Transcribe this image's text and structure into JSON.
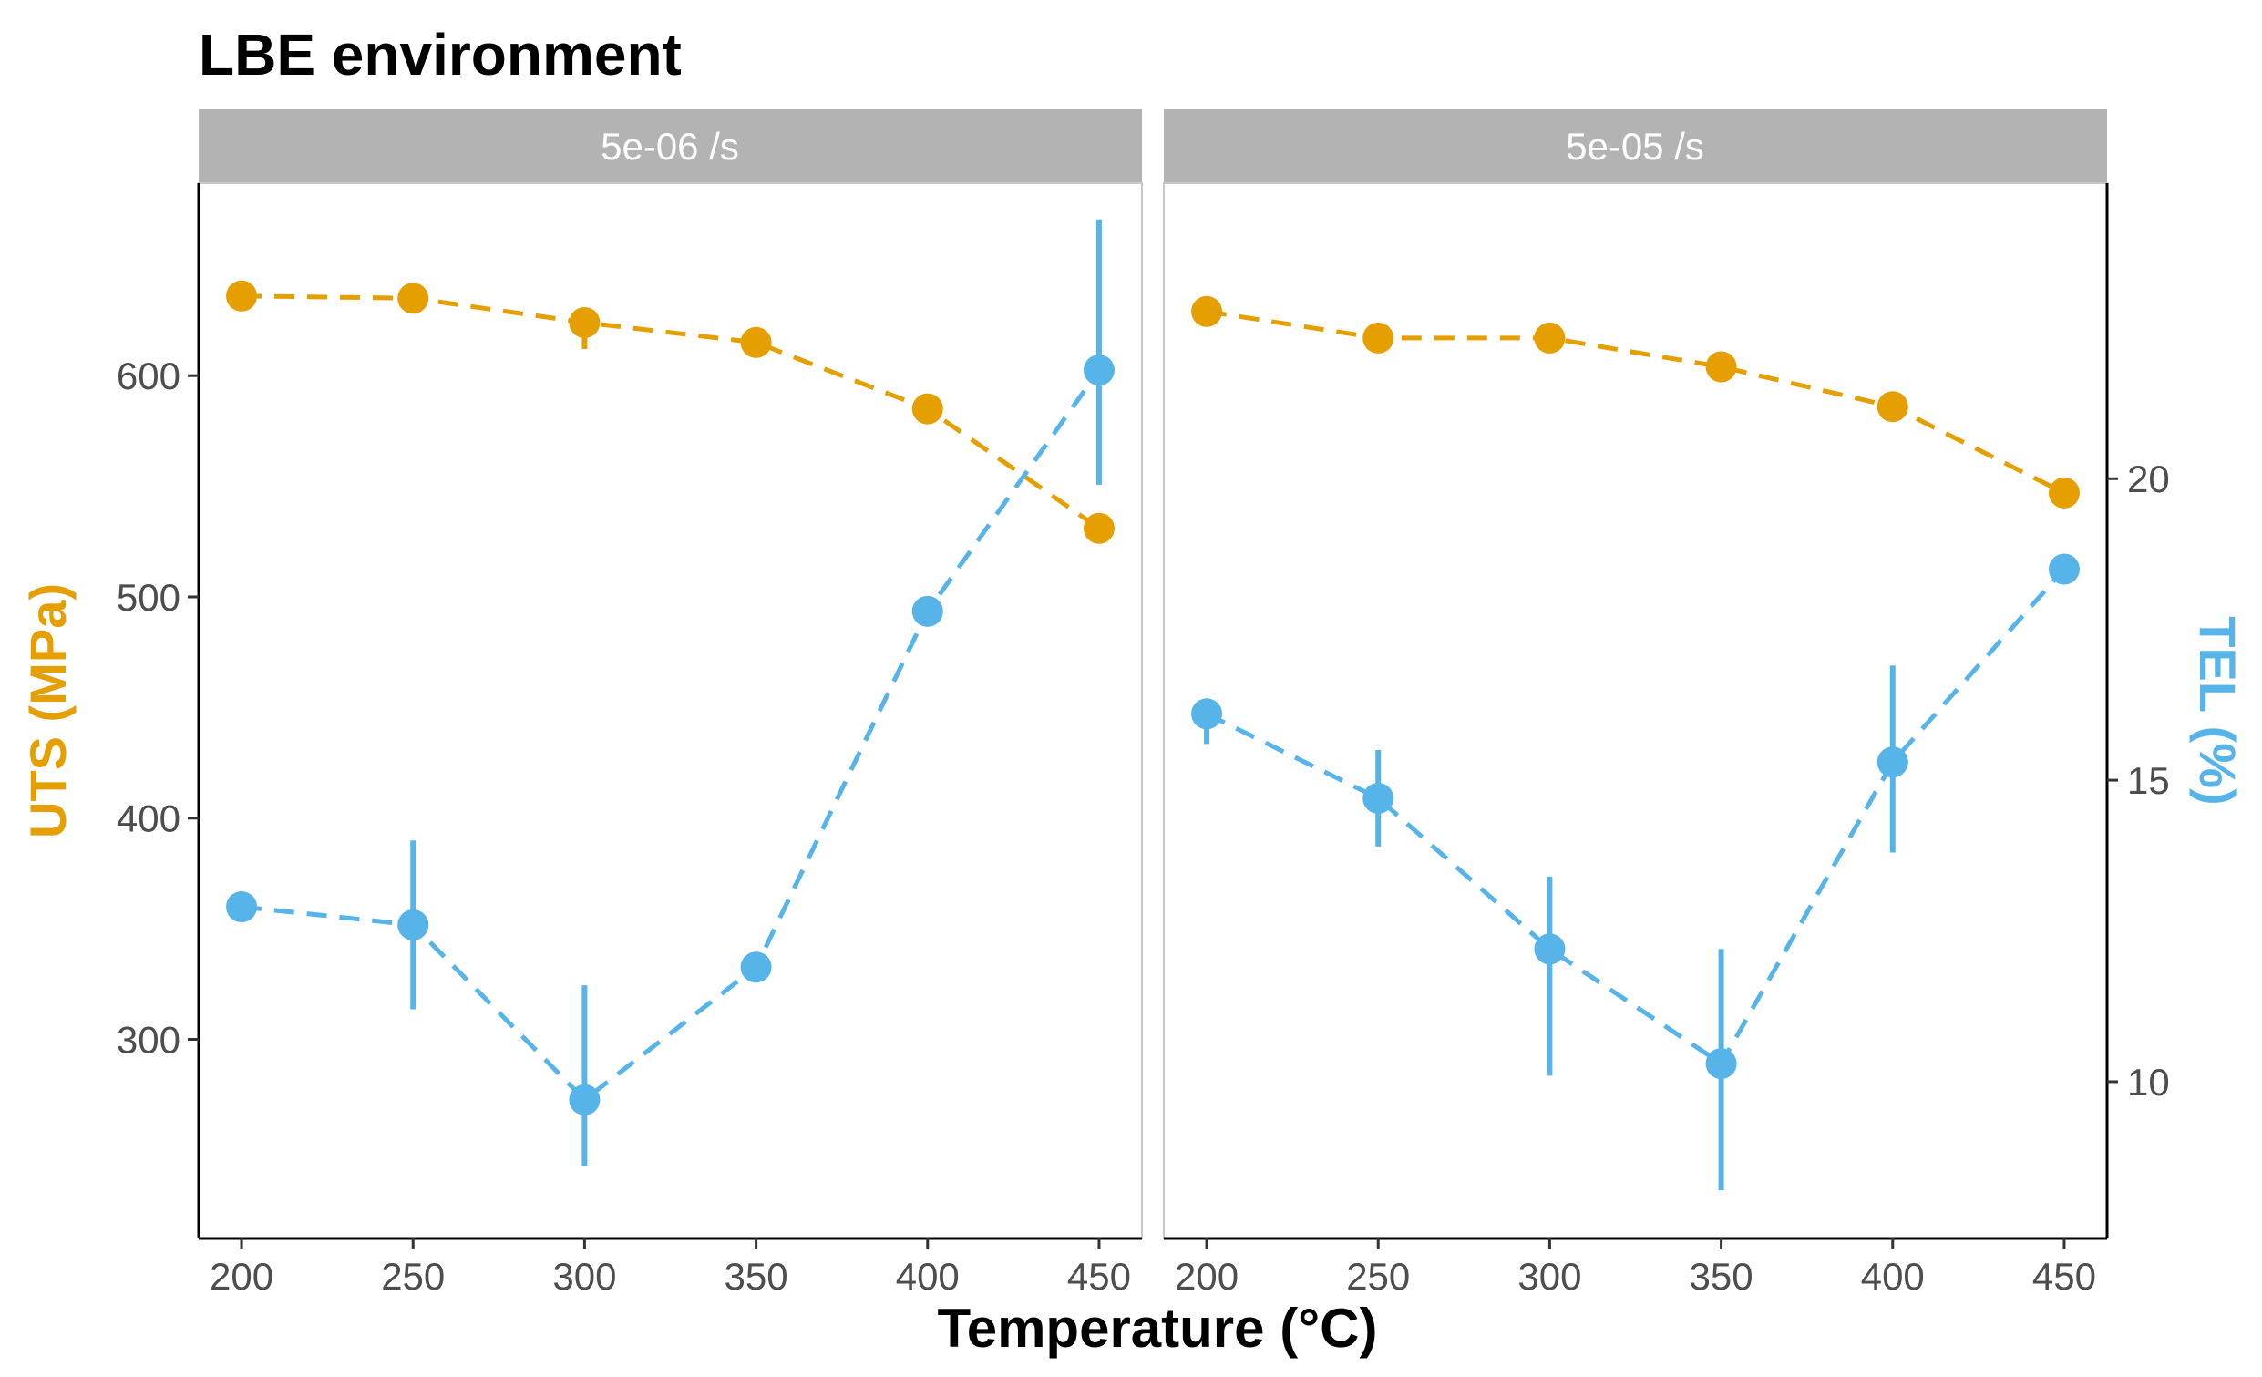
{
  "title": "LBE environment",
  "colors": {
    "uts": "#E69F00",
    "tel": "#56B4E9",
    "strip": "#b3b3b3",
    "axis": "#000000",
    "tick_text": "#4d4d4d"
  },
  "chart_data": {
    "type": "line",
    "title": "LBE environment",
    "xlabel": "Temperature (°C)",
    "ylabel_left": "UTS (MPa)",
    "ylabel_right": "TEL (%)",
    "x_ticks": [
      200,
      250,
      300,
      350,
      400,
      450
    ],
    "y_left_ticks": [
      300,
      400,
      500,
      600
    ],
    "y_right_ticks": [
      10,
      15,
      20
    ],
    "xlim": [
      187.5,
      462.5
    ],
    "ylim_left": [
      210,
      687
    ],
    "ylim_right": [
      7.4,
      24.9
    ],
    "grid": false,
    "line_style": "dashed with point markers and error bars",
    "panels": [
      {
        "strip_label": "5e-06 /s",
        "series": [
          {
            "name": "UTS (MPa)",
            "axis": "left",
            "x": [
              200,
              250,
              300,
              350,
              400,
              450
            ],
            "y": [
              636,
              635,
              624,
              615,
              585,
              531
            ],
            "err_lo": [
              0,
              0,
              612,
              0,
              0,
              0
            ],
            "err_hi": [
              0,
              0,
              624,
              0,
              0,
              0
            ]
          },
          {
            "name": "TEL (%)",
            "axis": "right",
            "x": [
              200,
              250,
              300,
              350,
              400,
              450
            ],
            "y": [
              12.9,
              12.6,
              9.7,
              11.9,
              17.8,
              21.8
            ],
            "err_lo": [
              12.9,
              11.2,
              8.6,
              11.9,
              17.8,
              19.9
            ],
            "err_hi": [
              12.9,
              14.0,
              11.6,
              11.9,
              17.8,
              24.3
            ]
          }
        ]
      },
      {
        "strip_label": "5e-05 /s",
        "series": [
          {
            "name": "UTS (MPa)",
            "axis": "left",
            "x": [
              200,
              250,
              300,
              350,
              400,
              450
            ],
            "y": [
              629,
              617,
              617,
              604,
              586,
              547
            ],
            "err_lo": [
              0,
              0,
              0,
              0,
              0,
              0
            ],
            "err_hi": [
              0,
              0,
              0,
              0,
              0,
              0
            ]
          },
          {
            "name": "TEL (%)",
            "axis": "right",
            "x": [
              200,
              250,
              300,
              350,
              400,
              450
            ],
            "y": [
              16.1,
              14.7,
              12.2,
              10.3,
              15.3,
              18.5
            ],
            "err_lo": [
              15.6,
              13.9,
              10.1,
              8.2,
              13.8,
              18.5
            ],
            "err_hi": [
              16.1,
              15.5,
              13.4,
              12.2,
              16.9,
              18.5
            ]
          }
        ]
      }
    ]
  }
}
